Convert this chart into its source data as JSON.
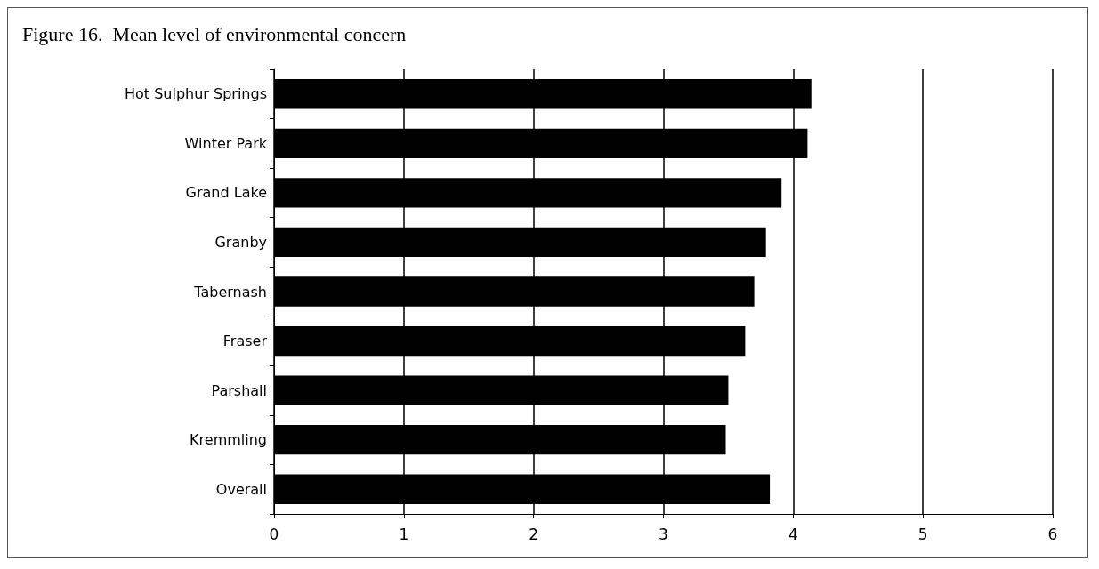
{
  "chart_data": {
    "type": "bar",
    "orientation": "horizontal",
    "title": "Figure 16.  Mean level of environmental concern",
    "categories": [
      "Hot Sulphur Springs",
      "Winter Park",
      "Grand Lake",
      "Granby",
      "Tabernash",
      "Fraser",
      "Parshall",
      "Kremmling",
      "Overall"
    ],
    "values": [
      4.14,
      4.11,
      3.91,
      3.79,
      3.7,
      3.63,
      3.5,
      3.48,
      3.82
    ],
    "color": "#000000",
    "xlim": [
      0,
      6
    ],
    "xticks": [
      0,
      1,
      2,
      3,
      4,
      5,
      6
    ],
    "grid": "x"
  }
}
